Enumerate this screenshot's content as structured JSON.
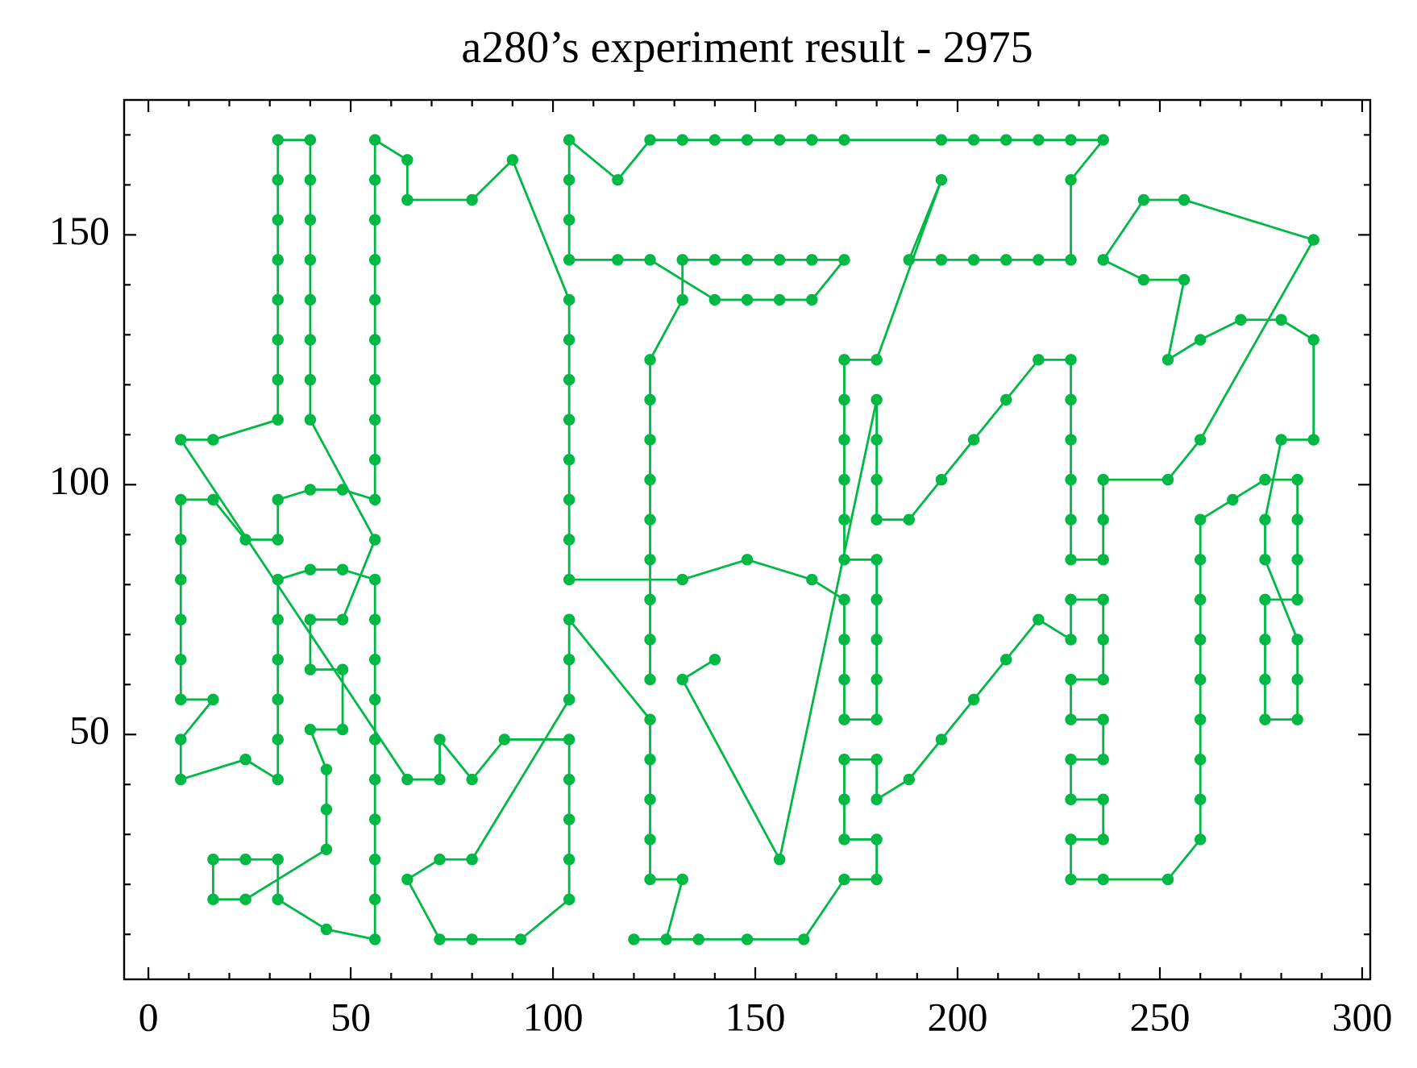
{
  "chart_data": {
    "type": "line",
    "title": "a280’s experiment result - 2975",
    "color": "#00b945",
    "markers": true,
    "xlim": [
      -6,
      302
    ],
    "ylim": [
      1,
      177
    ],
    "xticks": [
      0,
      50,
      100,
      150,
      200,
      250,
      300
    ],
    "yticks": [
      50,
      100,
      150
    ],
    "xminorticks": [
      10,
      20,
      30,
      40,
      60,
      70,
      80,
      90,
      110,
      120,
      130,
      140,
      160,
      170,
      180,
      190,
      210,
      220,
      230,
      240,
      260,
      270,
      280,
      290
    ],
    "yminorticks": [
      10,
      20,
      30,
      40,
      60,
      70,
      80,
      90,
      110,
      120,
      130,
      140,
      160,
      170
    ],
    "x": [
      124,
      124,
      124,
      124,
      124,
      124,
      124,
      124,
      124,
      132,
      132,
      140,
      148,
      156,
      164,
      172,
      164,
      156,
      148,
      140,
      124,
      116,
      104,
      104,
      104,
      104,
      116,
      124,
      132,
      140,
      148,
      156,
      164,
      172,
      196,
      204,
      212,
      220,
      228,
      236,
      228,
      228,
      220,
      212,
      204,
      196,
      188,
      196,
      180,
      172,
      172,
      172,
      172,
      172,
      172,
      180,
      180,
      180,
      180,
      180,
      172,
      172,
      172,
      172,
      164,
      148,
      132,
      104,
      104,
      104,
      104,
      104,
      104,
      104,
      104,
      90,
      80,
      64,
      64,
      56,
      56,
      56,
      56,
      56,
      56,
      56,
      56,
      56,
      56,
      48,
      40,
      32,
      32,
      24,
      16,
      8,
      8,
      8,
      8,
      8,
      8,
      16,
      8,
      8,
      24,
      32,
      32,
      32,
      32,
      32,
      32,
      40,
      48,
      56,
      56,
      56,
      56,
      56,
      56,
      56,
      56,
      56,
      56,
      44,
      32,
      32,
      24,
      16,
      16,
      24,
      44,
      44,
      44,
      40,
      48,
      48,
      40,
      40,
      48,
      56,
      40,
      40,
      40,
      40,
      40,
      40,
      40,
      40,
      32,
      32,
      32,
      32,
      32,
      32,
      32,
      32,
      16,
      8,
      64,
      72,
      72,
      80,
      88,
      104,
      104,
      104,
      104,
      104,
      92,
      80,
      72,
      64,
      72,
      80,
      104,
      104,
      104,
      124,
      124,
      124,
      124,
      124,
      132,
      128,
      120,
      136,
      148,
      162,
      172,
      180,
      180,
      172,
      172,
      172,
      180,
      180,
      188,
      196,
      204,
      212,
      220,
      228,
      228,
      236,
      236,
      236,
      228,
      228,
      236,
      236,
      228,
      228,
      236,
      236,
      228,
      228,
      236,
      252,
      260,
      260,
      260,
      260,
      260,
      260,
      260,
      260,
      260,
      268,
      276,
      284,
      284,
      284,
      284,
      276,
      276,
      276,
      276,
      284,
      284,
      284,
      276,
      276,
      280,
      288,
      288,
      280,
      270,
      260,
      252,
      256,
      246,
      236,
      246,
      256,
      288,
      260,
      252,
      236,
      236,
      236,
      228,
      228,
      228,
      228,
      228,
      228,
      220,
      212,
      204,
      196,
      188,
      180,
      180,
      180,
      180,
      156,
      132,
      140
    ],
    "values": [
      61,
      69,
      77,
      85,
      93,
      101,
      109,
      117,
      125,
      137,
      145,
      145,
      145,
      145,
      145,
      145,
      137,
      137,
      137,
      137,
      145,
      145,
      145,
      153,
      161,
      169,
      161,
      169,
      169,
      169,
      169,
      169,
      169,
      169,
      169,
      169,
      169,
      169,
      169,
      169,
      161,
      145,
      145,
      145,
      145,
      145,
      145,
      161,
      125,
      125,
      117,
      109,
      101,
      93,
      85,
      85,
      77,
      69,
      61,
      53,
      53,
      61,
      69,
      77,
      81,
      85,
      81,
      81,
      89,
      97,
      105,
      113,
      121,
      129,
      137,
      165,
      157,
      157,
      165,
      169,
      161,
      153,
      145,
      137,
      129,
      121,
      113,
      105,
      97,
      99,
      99,
      97,
      89,
      89,
      97,
      97,
      89,
      81,
      73,
      65,
      57,
      57,
      49,
      41,
      45,
      41,
      49,
      57,
      65,
      73,
      81,
      83,
      83,
      81,
      73,
      65,
      57,
      49,
      41,
      33,
      25,
      17,
      9,
      11,
      17,
      25,
      25,
      25,
      17,
      17,
      27,
      35,
      43,
      51,
      51,
      63,
      63,
      73,
      73,
      89,
      113,
      121,
      129,
      137,
      145,
      153,
      161,
      169,
      169,
      161,
      153,
      145,
      137,
      129,
      121,
      113,
      109,
      109,
      41,
      41,
      49,
      41,
      49,
      49,
      41,
      33,
      25,
      17,
      9,
      9,
      9,
      21,
      25,
      25,
      57,
      65,
      73,
      53,
      45,
      37,
      29,
      21,
      21,
      9,
      9,
      9,
      9,
      9,
      21,
      21,
      29,
      29,
      37,
      45,
      45,
      37,
      41,
      49,
      57,
      65,
      73,
      69,
      77,
      77,
      69,
      61,
      61,
      53,
      53,
      45,
      45,
      37,
      37,
      29,
      29,
      21,
      21,
      21,
      29,
      37,
      45,
      53,
      61,
      69,
      77,
      85,
      93,
      97,
      101,
      101,
      93,
      85,
      77,
      77,
      69,
      61,
      53,
      53,
      61,
      69,
      85,
      93,
      109,
      109,
      129,
      133,
      133,
      129,
      125,
      141,
      141,
      145,
      157,
      157,
      149,
      109,
      101,
      101,
      93,
      85,
      85,
      93,
      101,
      109,
      117,
      125,
      125,
      117,
      109,
      101,
      93,
      93,
      101,
      109,
      117,
      25,
      61,
      65
    ]
  }
}
